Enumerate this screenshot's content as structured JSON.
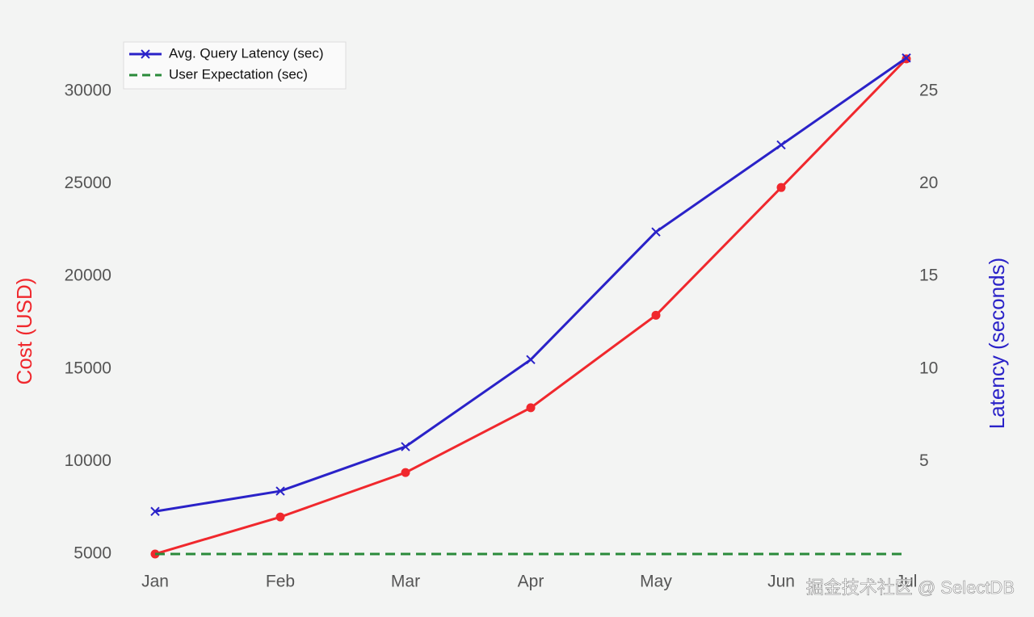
{
  "chart_data": {
    "type": "line",
    "categories": [
      "Jan",
      "Feb",
      "Mar",
      "Apr",
      "May",
      "Jun",
      "Jul"
    ],
    "series": [
      {
        "color": "#f0282d",
        "marker": "circle",
        "values": [
          5000,
          7000,
          9400,
          12900,
          17900,
          24800,
          31750
        ]
      },
      {
        "name": "Avg. Query Latency (sec)",
        "color": "#2a22c8",
        "marker": "x",
        "axis": "y2",
        "values": [
          2.3,
          3.4,
          5.8,
          10.5,
          17.4,
          22.1,
          26.8
        ]
      },
      {
        "name": "User Expectation (sec)",
        "color": "#2a8a3a",
        "dashed": true,
        "axis": "y2",
        "values": [
          0,
          0,
          0,
          0,
          0,
          0,
          0
        ]
      }
    ],
    "ylabel": "Cost (USD)",
    "ylabel_color": "#f0282d",
    "y2label": "Latency (seconds)",
    "y2label_color": "#2a22c8",
    "ylim": [
      4000,
      32500
    ],
    "yticks": [
      5000,
      10000,
      15000,
      20000,
      25000,
      30000
    ],
    "y2lim": [
      -1,
      27.5
    ],
    "y2ticks": [
      5,
      10,
      15,
      20,
      25
    ],
    "legend": "upper left",
    "watermark": "掘金技术社区 @ SelectDB"
  }
}
